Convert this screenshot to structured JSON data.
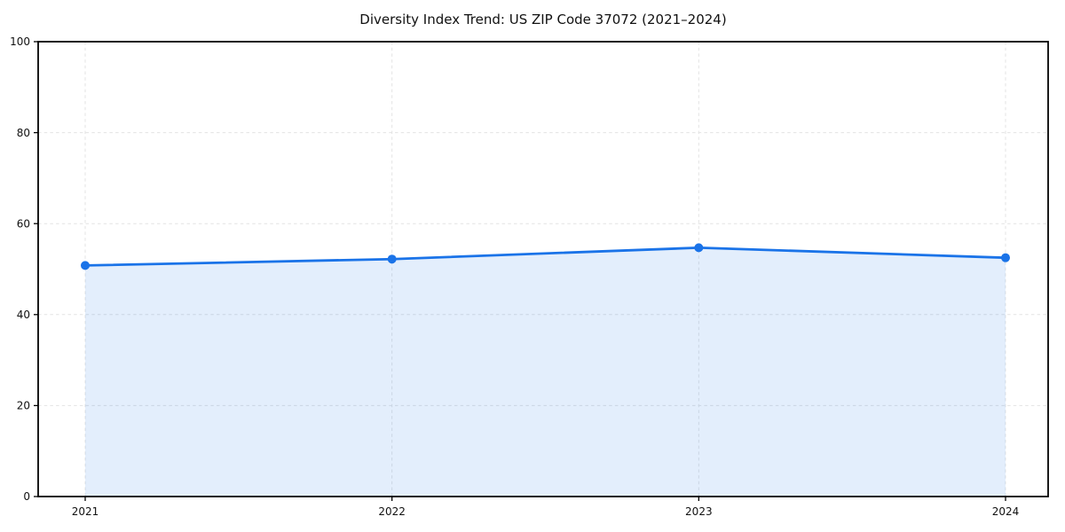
{
  "chart_data": {
    "type": "line",
    "title": "Diversity Index Trend: US ZIP Code 37072 (2021–2024)",
    "x": [
      2021,
      2022,
      2023,
      2024
    ],
    "xtick_labels": [
      "2021",
      "2022",
      "2023",
      "2024"
    ],
    "series": [
      {
        "name": "Diversity Index",
        "values": [
          50.8,
          52.2,
          54.7,
          52.5
        ]
      }
    ],
    "xlabel": "",
    "ylabel": "",
    "ylim": [
      0,
      100
    ],
    "yticks": [
      0,
      20,
      40,
      60,
      80,
      100
    ],
    "grid": true,
    "legend": "none",
    "style": {
      "line_color": "#1a73e8",
      "marker_color": "#1a73e8",
      "fill_color": "#1a73e8",
      "fill_opacity": 0.12,
      "grid_color": "#e3e3e3",
      "axis_color": "#000000",
      "tick_label_color": "#111111",
      "background": "#ffffff"
    }
  }
}
